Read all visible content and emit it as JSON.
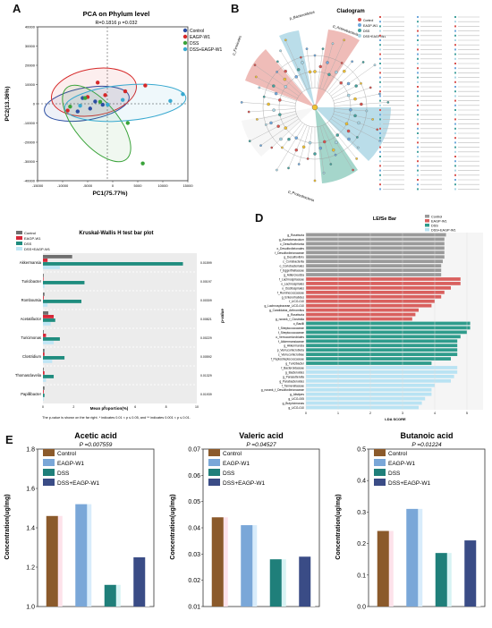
{
  "panels": {
    "A": {
      "letter": "A",
      "title": "PCA on Phylum level",
      "stat": "R=0.1816    p =0.032",
      "xlabel": "PC1(75.77%)",
      "ylabel": "PC2(13.36%)",
      "legend": [
        "Control",
        "EAGP-W1",
        "DSS",
        "DSS+EAGP-W1"
      ],
      "xticks": [
        "-15000",
        "-10000",
        "-5000",
        "0",
        "5000",
        "10000",
        "15000"
      ],
      "yticks": [
        "40000",
        "30000",
        "20000",
        "10000",
        "0",
        "-10000",
        "-20000",
        "-30000",
        "-40000"
      ]
    },
    "B": {
      "letter": "B",
      "title": "Cladogram",
      "legend": [
        "Control",
        "EAGP-W1",
        "DSS",
        "DSS+EAGP-W1"
      ],
      "side_labels": [
        "p_Firmicutes",
        "p_Bacteroidetes",
        "p_Actinobacteria",
        "p_Proteobacteria"
      ]
    },
    "C": {
      "letter": "C",
      "title": "Kruskal-Wallis H test bar plot",
      "xlabel": "Mean proportion(%)",
      "ylabel": "p-value",
      "legend": [
        "Control",
        "EAGP-W1",
        "DSS",
        "DSS+EAGP-W1"
      ],
      "footnote": "The p-value is shown on the far right. * indicates 0.01 < p ≤ 0.05, and ** indicates 0.001 < p ≤ 0.01."
    },
    "D": {
      "letter": "D",
      "title": "LEfSe Bar",
      "xlabel": "LDA SCORE",
      "legend": [
        "Control",
        "EAGP-W1",
        "DSS",
        "DSS+EAGP-W1"
      ]
    },
    "E": {
      "letter": "E",
      "ylabel": "Concentration(ug/mg)",
      "legend": [
        "Control",
        "EAGP-W1",
        "DSS",
        "DSS+EAGP-W1"
      ]
    }
  },
  "colors": {
    "control": "#8b5a2b",
    "eagp": "#7aa7d8",
    "dss": "#1f7f7a",
    "dss_eagp": "#3a4c86",
    "pca_control": "#2c4fa3",
    "pca_eagp": "#d62828",
    "pca_dss": "#3aa33a",
    "pca_dss_eagp": "#39a9d0"
  },
  "chart_data": [
    {
      "type": "scatter",
      "panel": "A",
      "title": "PCA on Phylum level",
      "xlabel": "PC1(75.77%)",
      "ylabel": "PC2(13.36%)",
      "xlim": [
        -15000,
        15000
      ],
      "ylim": [
        -40000,
        40000
      ],
      "series": [
        {
          "name": "Control",
          "points": [
            [
              -7000,
              -4000
            ],
            [
              -4500,
              -2500
            ],
            [
              -2000,
              -500
            ],
            [
              -3500,
              1200
            ],
            [
              -6000,
              3000
            ]
          ]
        },
        {
          "name": "EAGP-W1",
          "points": [
            [
              -9000,
              -3500
            ],
            [
              -5000,
              3500
            ],
            [
              -1500,
              4500
            ],
            [
              2500,
              6500
            ],
            [
              6500,
              9500
            ],
            [
              -3000,
              11000
            ]
          ]
        },
        {
          "name": "DSS",
          "points": [
            [
              -8500,
              -1500
            ],
            [
              -5500,
              3000
            ],
            [
              -2500,
              1000
            ],
            [
              3000,
              -10000
            ],
            [
              6000,
              -31000
            ]
          ]
        },
        {
          "name": "DSS+EAGP-W1",
          "points": [
            [
              -6500,
              -1000
            ],
            [
              -1000,
              -500
            ],
            [
              2000,
              2000
            ],
            [
              11500,
              1500
            ],
            [
              14000,
              5000
            ]
          ]
        }
      ]
    },
    {
      "type": "bar",
      "panel": "C",
      "title": "Kruskal-Wallis H test bar plot",
      "xlabel": "Mean proportion(%)",
      "categories": [
        "Akkermansia",
        "Turicibacter",
        "Romboutsia",
        "Acetatifactor",
        "Turicimonas",
        "Clostridium",
        "Thomasclavelia",
        "Papillibacter"
      ],
      "pvalues": [
        "0.01599",
        "0.00197",
        "0.00309",
        "0.00821",
        "0.00229",
        "0.00592",
        "0.01329",
        "0.01939"
      ],
      "series": [
        {
          "name": "Control",
          "values": [
            1.9,
            0.05,
            0.1,
            0.35,
            0.05,
            0.1,
            0.05,
            0.1
          ]
        },
        {
          "name": "EAGP-W1",
          "values": [
            0.3,
            0.02,
            0.05,
            0.7,
            0.2,
            0.1,
            0.1,
            0.05
          ]
        },
        {
          "name": "DSS",
          "values": [
            9.1,
            2.7,
            2.5,
            0.8,
            1.1,
            1.4,
            0.7,
            0.1
          ]
        },
        {
          "name": "DSS+EAGP-W1",
          "values": [
            1.1,
            0.1,
            0.3,
            0.5,
            0.7,
            0.6,
            0.2,
            0.05
          ]
        }
      ]
    },
    {
      "type": "bar",
      "panel": "D",
      "title": "LEfSe Bar",
      "xlabel": "LDA SCORE",
      "categories": [
        "g_Roseburia",
        "g_Acetatomaculum",
        "c_Desulfovibrionia",
        "o_Desulfovibrionales",
        "f_Desulfovibrionaceae",
        "g_Desulfovibrio",
        "c_Coriobacteriia",
        "o_Coriobacteriales",
        "f_Eggerthellaceae",
        "g_Adlercreutzia",
        "f_Lachnospiraceae",
        "o_Lachnospirales",
        "o_Oscillospirales",
        "f_Ruminococcaceae",
        "g_Enterorhabdus",
        "f_UCG-010",
        "g_Lachnospiraceae_UCG-010",
        "g_Candidatus_Arthromitus",
        "g_Roseburia",
        "g_norank_f_Clostridia",
        "o_Bacilli",
        "f_Streptococcaceae",
        "f_Streptococcaceae",
        "o_Verrucomicrobiales",
        "f_Akkermansiaceae",
        "g_Akkermansia",
        "p_Verrucomicrobiota",
        "c_Verrucomicrobiae",
        "f_Peptostreptococcaceae",
        "g_Turicibacter",
        "f_Bacteroidaceae",
        "g_Bacteroides",
        "g_Parasutterella",
        "g_Parabacteroides",
        "f_Tannerellaceae",
        "g_norank_f_Desulfovibrionaceae",
        "g_Alistipes",
        "g_UCG-005",
        "g_Butyricimonas",
        "g_UCG-010"
      ],
      "values": [
        4.35,
        4.3,
        4.3,
        4.3,
        4.3,
        4.3,
        4.25,
        4.2,
        4.2,
        4.2,
        4.8,
        4.8,
        4.5,
        4.3,
        4.2,
        4.0,
        3.9,
        3.5,
        3.4,
        3.3,
        5.1,
        5.1,
        5.0,
        4.8,
        4.7,
        4.7,
        4.7,
        4.7,
        4.5,
        3.9,
        4.7,
        4.7,
        4.6,
        4.5,
        4.0,
        3.9,
        3.9,
        3.7,
        3.6,
        3.5
      ],
      "groups": [
        0,
        0,
        0,
        0,
        0,
        0,
        0,
        0,
        0,
        0,
        1,
        1,
        1,
        1,
        1,
        1,
        1,
        1,
        1,
        1,
        2,
        2,
        2,
        2,
        2,
        2,
        2,
        2,
        2,
        2,
        3,
        3,
        3,
        3,
        3,
        3,
        3,
        3,
        3,
        3
      ],
      "xlim": [
        0,
        5.5
      ]
    },
    {
      "type": "bar",
      "panel": "E1",
      "title": "Acetic acid",
      "subtitle": "P =0.007559",
      "ylabel": "Concentration(ug/mg)",
      "categories": [
        "Control",
        "EAGP-W1",
        "DSS",
        "DSS+EAGP-W1"
      ],
      "values": [
        1.46,
        1.52,
        1.11,
        1.25
      ],
      "ylim": [
        1.0,
        1.8
      ],
      "yticks": [
        "1.0",
        "1.2",
        "1.4",
        "1.6",
        "1.8"
      ]
    },
    {
      "type": "bar",
      "panel": "E2",
      "title": "Valeric acid",
      "subtitle": "P =0.04527",
      "ylabel": "Concentration(ug/mg)",
      "categories": [
        "Control",
        "EAGP-W1",
        "DSS",
        "DSS+EAGP-W1"
      ],
      "values": [
        0.044,
        0.041,
        0.028,
        0.029
      ],
      "ylim": [
        0.01,
        0.07
      ],
      "yticks": [
        "0.01",
        "0.02",
        "0.03",
        "0.04",
        "0.05",
        "0.06",
        "0.07"
      ]
    },
    {
      "type": "bar",
      "panel": "E3",
      "title": "Butanoic acid",
      "subtitle": "P =0.01224",
      "ylabel": "Concentration(ug/mg)",
      "categories": [
        "Control",
        "EAGP-W1",
        "DSS",
        "DSS+EAGP-W1"
      ],
      "values": [
        0.24,
        0.31,
        0.17,
        0.21
      ],
      "ylim": [
        0.0,
        0.5
      ],
      "yticks": [
        "0.0",
        "0.1",
        "0.2",
        "0.3",
        "0.4",
        "0.5"
      ]
    }
  ]
}
